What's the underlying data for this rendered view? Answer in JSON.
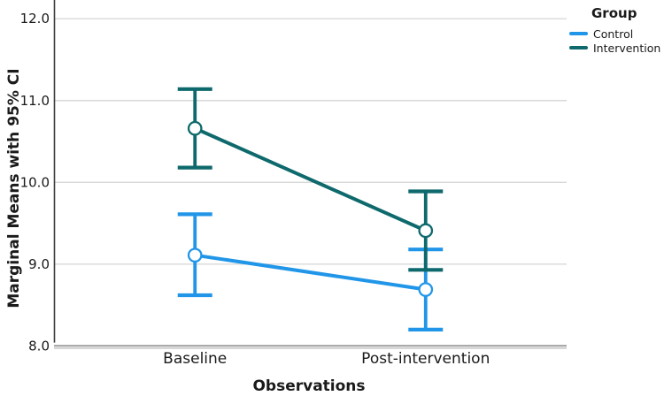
{
  "chart_data": {
    "type": "line",
    "title": "",
    "xlabel": "Observations",
    "ylabel": "Marginal Means with 95% CI",
    "categories": [
      "Baseline",
      "Post-intervention"
    ],
    "series": [
      {
        "name": "Control",
        "color": "#2196e8",
        "values": [
          9.11,
          8.69
        ],
        "ci_low": [
          8.62,
          8.2
        ],
        "ci_high": [
          9.61,
          9.18
        ]
      },
      {
        "name": "Intervention",
        "color": "#0e696c",
        "values": [
          10.66,
          9.41
        ],
        "ci_low": [
          10.18,
          8.93
        ],
        "ci_high": [
          11.14,
          9.89
        ]
      }
    ],
    "y_tick_labels": [
      "12.0",
      "11.0",
      "10.0",
      "9.0",
      "8.0"
    ],
    "y_tick_values": [
      12.0,
      11.0,
      10.0,
      9.0,
      8.0
    ],
    "ylim": [
      8.0,
      12.0
    ],
    "grid": true,
    "error_bars": "95% CI",
    "marker": "open-circle",
    "legend": {
      "title": "Group",
      "position": "top-right",
      "entries": [
        "Control",
        "Intervention"
      ]
    }
  },
  "colors": {
    "background": "#ffffff",
    "gridline": "#d8d8d8",
    "y_axis_line": "#3a3a3a",
    "frame_line_dark": "#9a9a9a",
    "frame_line_light": "#c8c8c8",
    "text": "#1a1a1a",
    "marker_fill": "#ffffff"
  }
}
